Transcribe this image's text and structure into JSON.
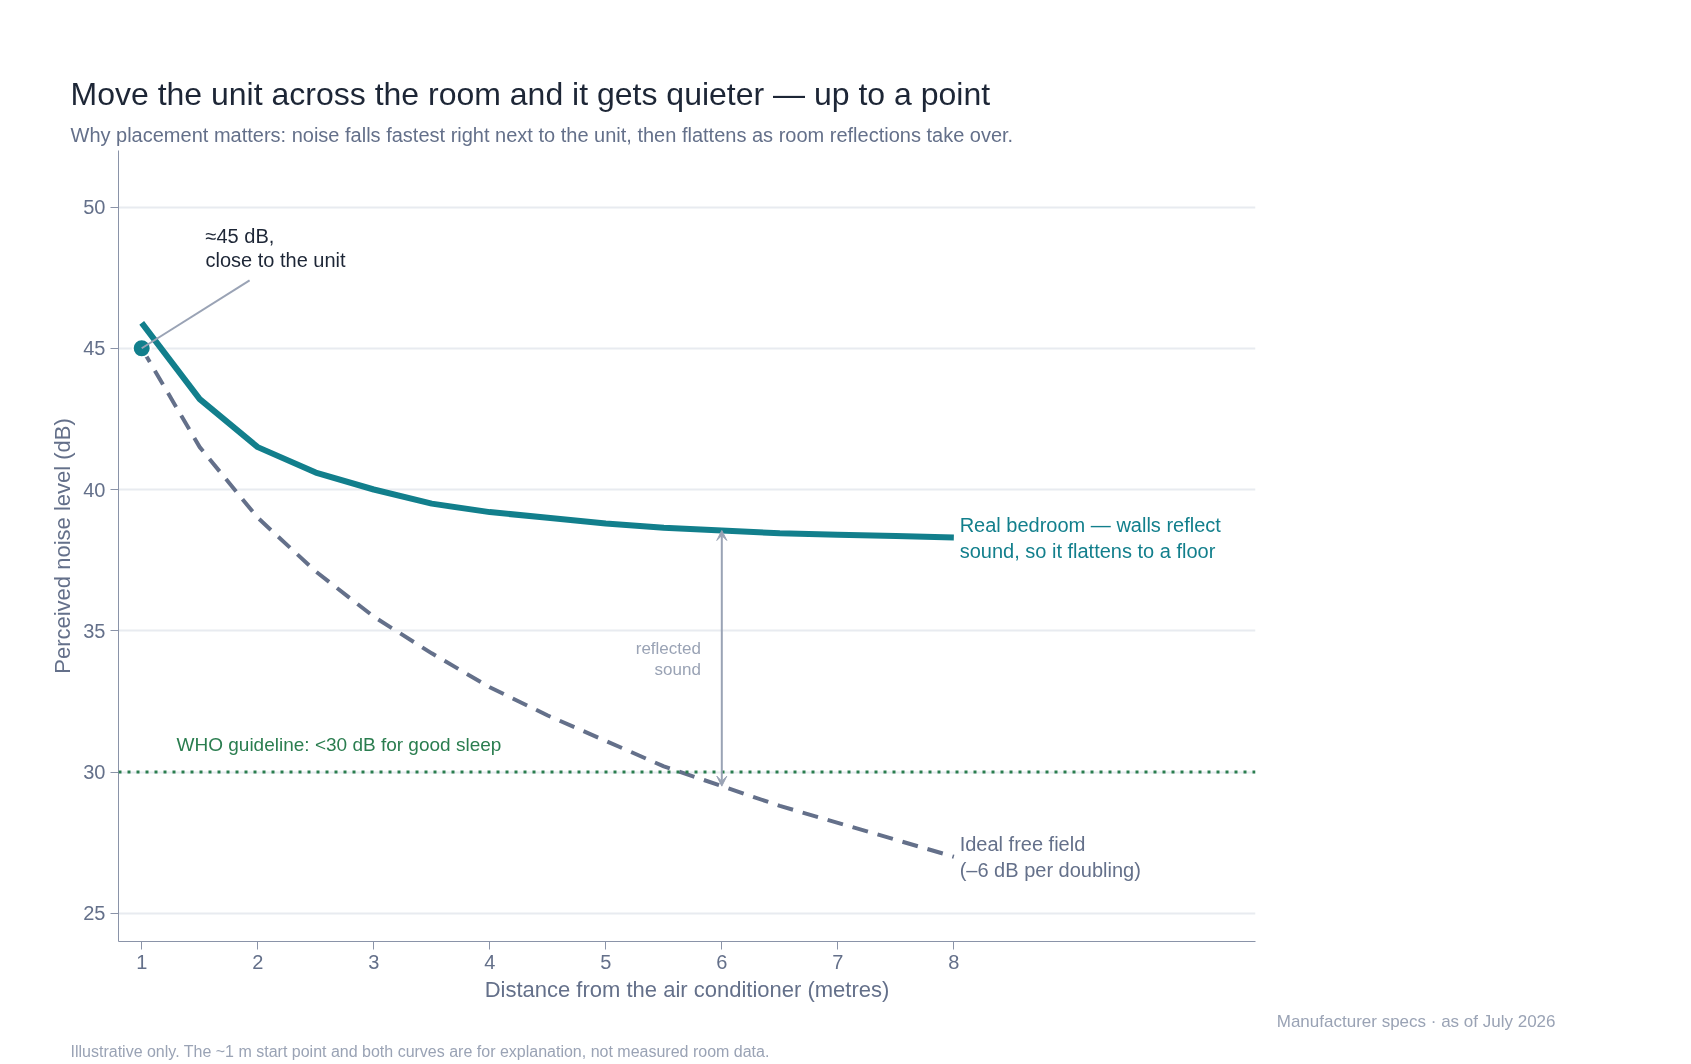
{
  "chart_data": {
    "type": "line",
    "title": "Move the unit across the room and it gets quieter — up to a point",
    "subtitle": "Why placement matters: noise falls fastest right next to the unit, then flattens as room reflections take over.",
    "xlabel": "Distance from the air conditioner (metres)",
    "ylabel": "Perceived noise level (dB)",
    "x": [
      1,
      1.5,
      2,
      2.5,
      3,
      3.5,
      4,
      4.5,
      5,
      5.5,
      6,
      6.5,
      7,
      7.5,
      8
    ],
    "series": [
      {
        "name": "Real bedroom — walls reflect sound, so it flattens to a floor",
        "color": "#127f8c",
        "line_style": "solid",
        "values": [
          45.9,
          43.2,
          41.5,
          40.6,
          40.0,
          39.5,
          39.2,
          39.0,
          38.8,
          38.65,
          38.55,
          38.45,
          38.4,
          38.35,
          38.3
        ]
      },
      {
        "name": "Ideal free field (–6 dB per doubling)",
        "color": "#64708a",
        "line_style": "dashed",
        "values": [
          45,
          41.5,
          39,
          37.1,
          35.5,
          34.2,
          33,
          32,
          31.1,
          30.2,
          29.5,
          28.8,
          28.2,
          27.6,
          27
        ]
      },
      {
        "type": "scatter",
        "color": "#127f8c",
        "marker": "circle",
        "x": [
          1
        ],
        "values": [
          45
        ]
      }
    ],
    "xlim": [
      0.8,
      10.6
    ],
    "ylim": [
      24,
      52
    ],
    "xticks": [
      1,
      2,
      3,
      4,
      5,
      6,
      7,
      8
    ],
    "yticks": [
      25,
      30,
      35,
      40,
      45,
      50
    ],
    "grid": "y",
    "ref_lines": [
      {
        "axis": "y",
        "value": 30,
        "label": "WHO guideline: <30 dB for good sleep",
        "color": "#2a7d4f",
        "line_style": "dotted"
      }
    ],
    "annotations": [
      {
        "text": "≈45 dB, close to the unit",
        "x": 1,
        "y": 45
      },
      "reflected sound",
      "Manufacturer specs · as of July 2026",
      "Illustrative only. The ~1 m start point and both curves are for explanation, not measured room data."
    ]
  }
}
